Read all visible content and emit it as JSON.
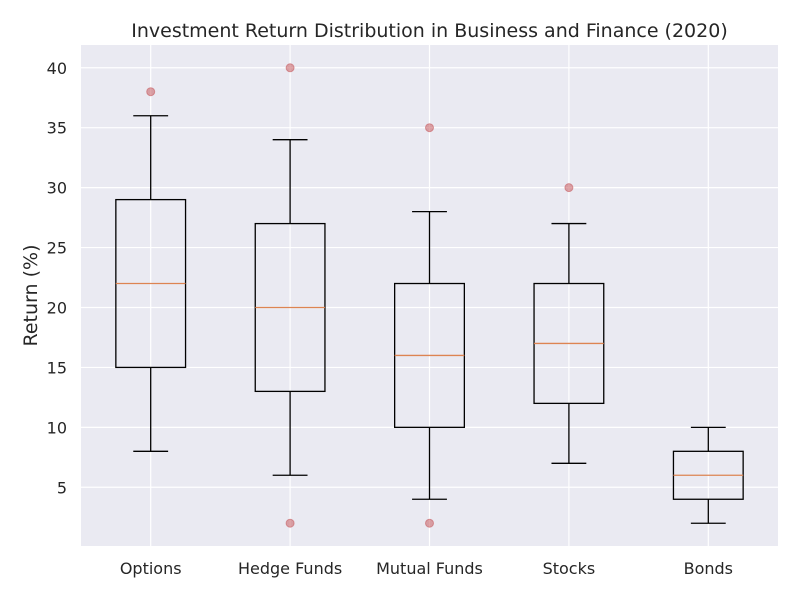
{
  "chart_data": {
    "type": "box",
    "title": "Investment Return Distribution in Business and Finance (2020)",
    "xlabel": "",
    "ylabel": "Return (%)",
    "categories": [
      "Options",
      "Hedge Funds",
      "Mutual Funds",
      "Stocks",
      "Bonds"
    ],
    "boxes": [
      {
        "category": "Options",
        "whisker_low": 8,
        "q1": 15,
        "median": 22,
        "q3": 29,
        "whisker_high": 36,
        "outliers": [
          38
        ]
      },
      {
        "category": "Hedge Funds",
        "whisker_low": 6,
        "q1": 13,
        "median": 20,
        "q3": 27,
        "whisker_high": 34,
        "outliers": [
          40,
          2
        ]
      },
      {
        "category": "Mutual Funds",
        "whisker_low": 4,
        "q1": 10,
        "median": 16,
        "q3": 22,
        "whisker_high": 28,
        "outliers": [
          35,
          2
        ]
      },
      {
        "category": "Stocks",
        "whisker_low": 7,
        "q1": 12,
        "median": 17,
        "q3": 22,
        "whisker_high": 27,
        "outliers": [
          30
        ]
      },
      {
        "category": "Bonds",
        "whisker_low": 2,
        "q1": 4,
        "median": 6,
        "q3": 8,
        "whisker_high": 10,
        "outliers": []
      }
    ],
    "yticks": [
      5,
      10,
      15,
      20,
      25,
      30,
      35,
      40
    ],
    "ylim": [
      0.1,
      41.9
    ],
    "grid": true,
    "colors": {
      "background": "#eaeaf2",
      "grid": "#ffffff",
      "box": "#000000",
      "median": "#dd8452",
      "outlier": "#c44e52"
    }
  }
}
